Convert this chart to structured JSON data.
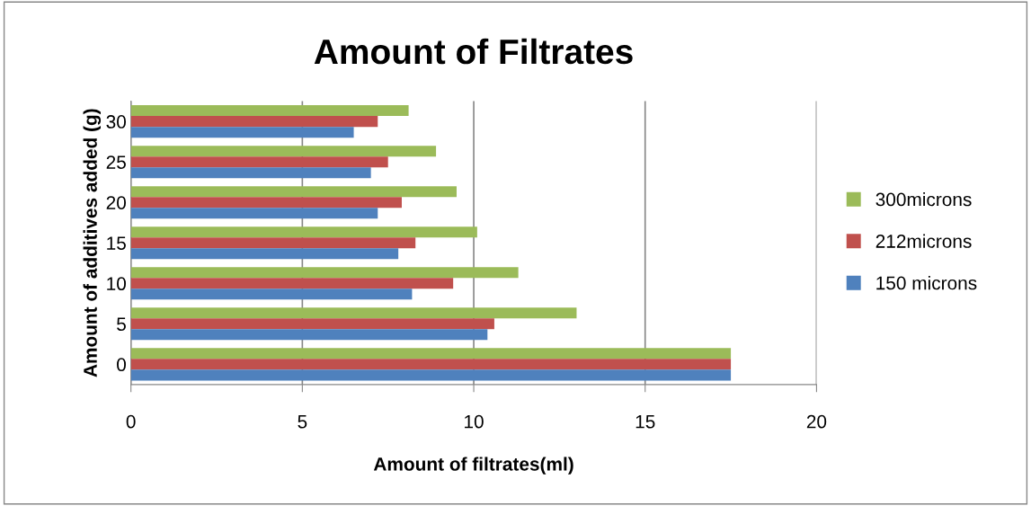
{
  "chart_data": {
    "type": "bar",
    "orientation": "horizontal",
    "title": "Amount of Filtrates",
    "xlabel": "Amount of filtrates(ml)",
    "ylabel": "Amount of additives added (g)",
    "categories": [
      "30",
      "25",
      "20",
      "15",
      "10",
      "5",
      "0"
    ],
    "series": [
      {
        "name": "300microns",
        "color": "#9bbb59",
        "values": [
          8.1,
          8.9,
          9.5,
          10.1,
          11.3,
          13.0,
          17.5
        ]
      },
      {
        "name": "212microns",
        "color": "#c0504d",
        "values": [
          7.2,
          7.5,
          7.9,
          8.3,
          9.4,
          10.6,
          17.5
        ]
      },
      {
        "name": "150 microns",
        "color": "#4f81bd",
        "values": [
          6.5,
          7.0,
          7.2,
          7.8,
          8.2,
          10.4,
          17.5
        ]
      }
    ],
    "xlim": [
      0,
      20
    ],
    "xticks": [
      0,
      5,
      10,
      15,
      20
    ],
    "grid": "x",
    "legend": "right"
  }
}
